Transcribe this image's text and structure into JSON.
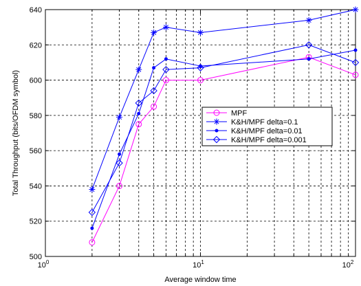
{
  "chart_data": {
    "type": "line",
    "xlabel": "Average window time",
    "ylabel": "Total Throughput (bits/OFDM symbol)",
    "xscale": "log",
    "xlim": [
      1,
      100
    ],
    "ylim": [
      500,
      640
    ],
    "yticks": [
      500,
      520,
      540,
      560,
      580,
      600,
      620,
      640
    ],
    "xticks": [
      {
        "value": 1,
        "base": "10",
        "exp": "0"
      },
      {
        "value": 10,
        "base": "10",
        "exp": "1"
      },
      {
        "value": 100,
        "base": "10",
        "exp": "2"
      }
    ],
    "grid": true,
    "legend_position": "center-right",
    "x": [
      2,
      3,
      4,
      5,
      6,
      10,
      50,
      100
    ],
    "series": [
      {
        "name": "MPF",
        "color": "#ff00ff",
        "marker": "circle",
        "values": [
          508,
          540,
          575,
          585,
          600,
          600,
          613,
          603
        ]
      },
      {
        "name": "K&H/MPF delta=0.1",
        "color": "#0000ff",
        "marker": "star",
        "values": [
          538,
          579,
          606,
          627,
          630,
          627,
          634,
          640
        ]
      },
      {
        "name": "K&H/MPF delta=0.01",
        "color": "#0000ff",
        "marker": "dot",
        "values": [
          516,
          558,
          581,
          607,
          612,
          608,
          612,
          617
        ]
      },
      {
        "name": "K&H/MPF delta=0.001",
        "color": "#0000ff",
        "marker": "diamond",
        "values": [
          525,
          553,
          587,
          594,
          606,
          607,
          620,
          610
        ]
      }
    ]
  }
}
